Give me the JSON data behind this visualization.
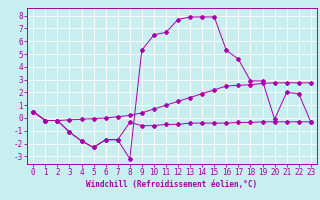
{
  "xlabel": "Windchill (Refroidissement éolien,°C)",
  "bg_color": "#c8eef0",
  "grid_color": "#ffffff",
  "line_color": "#aa00aa",
  "x_ticks": [
    0,
    1,
    2,
    3,
    4,
    5,
    6,
    7,
    8,
    9,
    10,
    11,
    12,
    13,
    14,
    15,
    16,
    17,
    18,
    19,
    20,
    21,
    22,
    23
  ],
  "y_ticks": [
    -3,
    -2,
    -1,
    0,
    1,
    2,
    3,
    4,
    5,
    6,
    7,
    8
  ],
  "xlim": [
    -0.5,
    23.5
  ],
  "ylim": [
    -3.6,
    8.6
  ],
  "series1_x": [
    0,
    1,
    2,
    3,
    4,
    5,
    6,
    7,
    8,
    9,
    10,
    11,
    12,
    13,
    14,
    15,
    16,
    17,
    18,
    19,
    20,
    21,
    22,
    23
  ],
  "series1_y": [
    0.5,
    -0.2,
    -0.2,
    -1.1,
    -1.8,
    -2.3,
    -1.7,
    -1.7,
    -0.35,
    -0.6,
    -0.6,
    -0.5,
    -0.5,
    -0.4,
    -0.4,
    -0.4,
    -0.4,
    -0.35,
    -0.35,
    -0.3,
    -0.3,
    -0.3,
    -0.3,
    -0.3
  ],
  "series2_x": [
    0,
    1,
    2,
    3,
    4,
    5,
    6,
    7,
    8,
    9,
    10,
    11,
    12,
    13,
    14,
    15,
    16,
    17,
    18,
    19,
    20,
    21,
    22,
    23
  ],
  "series2_y": [
    0.5,
    -0.2,
    -0.2,
    -0.15,
    -0.1,
    -0.05,
    0.0,
    0.1,
    0.2,
    0.4,
    0.7,
    1.0,
    1.3,
    1.6,
    1.9,
    2.2,
    2.5,
    2.55,
    2.6,
    2.7,
    2.75,
    2.75,
    2.75,
    2.75
  ],
  "series3_x": [
    0,
    1,
    2,
    3,
    4,
    5,
    6,
    7,
    8,
    9,
    10,
    11,
    12,
    13,
    14,
    15,
    16,
    17,
    18,
    19,
    20,
    21,
    22,
    23
  ],
  "series3_y": [
    0.5,
    -0.2,
    -0.2,
    -1.1,
    -1.8,
    -2.3,
    -1.7,
    -1.7,
    -3.2,
    5.3,
    6.5,
    6.7,
    7.7,
    7.9,
    7.9,
    7.9,
    5.3,
    4.6,
    2.9,
    2.9,
    -0.1,
    2.0,
    1.9,
    -0.3
  ],
  "tick_fontsize": 5.5,
  "xlabel_fontsize": 5.5,
  "lw": 0.7,
  "ms": 2.0
}
